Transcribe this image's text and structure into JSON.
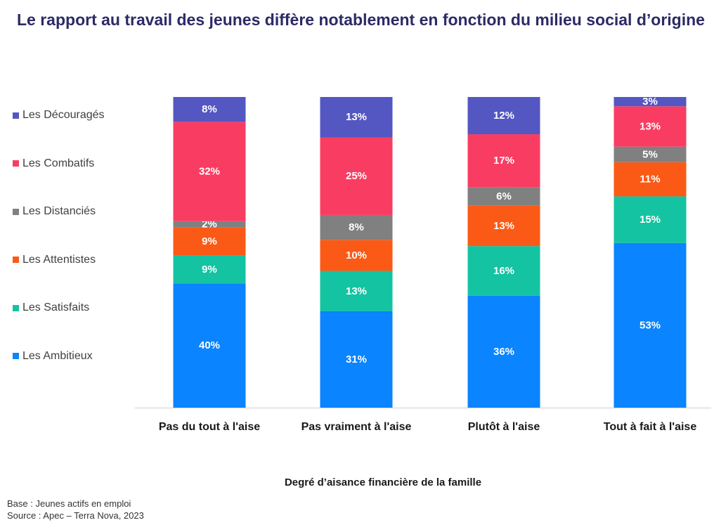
{
  "header": {
    "title": "Le rapport au travail des jeunes diffère notablement en fonction du milieu social d’origine"
  },
  "footer": {
    "base": "Base : Jeunes actifs  en emploi",
    "source": "Source : Apec – Terra Nova, 2023"
  },
  "chart_data": {
    "type": "bar",
    "stacked": true,
    "xlabel": "Degré d’aisance financière de la famille",
    "ylabel": "",
    "ylim": [
      0,
      100
    ],
    "grid": false,
    "legend_position": "left",
    "categories": [
      "Pas du tout à l'aise",
      "Pas vraiment à l'aise",
      "Plutôt à l'aise",
      "Tout à fait à l'aise"
    ],
    "series": [
      {
        "name": "Les Ambitieux",
        "color": "#0a84ff",
        "values": [
          40,
          31,
          36,
          53
        ]
      },
      {
        "name": "Les Satisfaits",
        "color": "#14c3a2",
        "values": [
          9,
          13,
          16,
          15
        ]
      },
      {
        "name": "Les Attentistes",
        "color": "#fa5a16",
        "values": [
          9,
          10,
          13,
          11
        ]
      },
      {
        "name": "Les Distanciés",
        "color": "#808080",
        "values": [
          2,
          8,
          6,
          5
        ]
      },
      {
        "name": "Les Combatifs",
        "color": "#f93d62",
        "values": [
          32,
          25,
          17,
          13
        ]
      },
      {
        "name": "Les Découragés",
        "color": "#5456c2",
        "values": [
          8,
          13,
          12,
          3
        ]
      }
    ],
    "data_labels": [
      [
        "40%",
        "31%",
        "36%",
        "53%"
      ],
      [
        "9%",
        "13%",
        "16%",
        "15%"
      ],
      [
        "9%",
        "10%",
        "13%",
        "11%"
      ],
      [
        "2%",
        "8%",
        "6%",
        "5%"
      ],
      [
        "32%",
        "25%",
        "17%",
        "13%"
      ],
      [
        "8%",
        "13%",
        "12%",
        "3%"
      ]
    ]
  }
}
